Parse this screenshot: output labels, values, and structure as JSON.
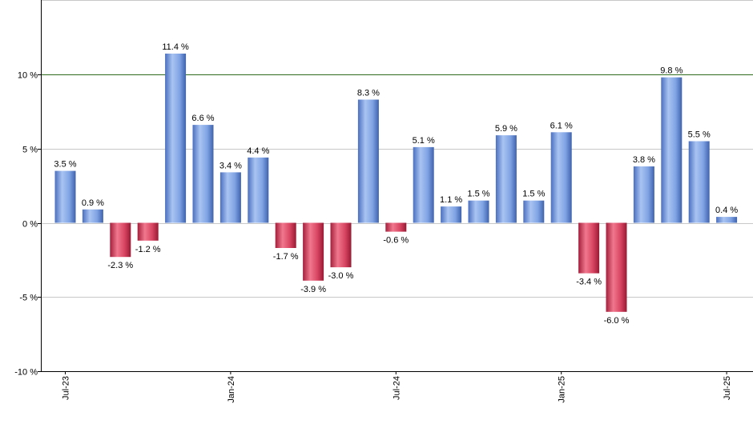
{
  "colors": {
    "positive_bar": "#6f96dc",
    "negative_bar": "#c83a55",
    "reference_line": "#2e6b1f",
    "grid": "#c8c8c8",
    "axis": "#000000"
  },
  "chart_data": {
    "type": "bar",
    "categories": [
      "Jul-23",
      "Aug-23",
      "Sep-23",
      "Oct-23",
      "Nov-23",
      "Dec-23",
      "Jan-24",
      "Feb-24",
      "Mar-24",
      "Apr-24",
      "May-24",
      "Jun-24",
      "Jul-24",
      "Aug-24",
      "Sep-24",
      "Oct-24",
      "Nov-24",
      "Dec-24",
      "Jan-25",
      "Feb-25",
      "Mar-25",
      "Apr-25",
      "May-25",
      "Jun-25",
      "Jul-25"
    ],
    "values": [
      3.5,
      0.9,
      -2.3,
      -1.2,
      11.4,
      6.6,
      3.4,
      4.4,
      -1.7,
      -3.9,
      -3.0,
      8.3,
      -0.6,
      5.1,
      1.1,
      1.5,
      5.9,
      1.5,
      6.1,
      -3.4,
      -6.0,
      3.8,
      9.8,
      5.5,
      0.4
    ],
    "data_labels": [
      "3.5 %",
      "0.9 %",
      "-2.3 %",
      "-1.2 %",
      "11.4 %",
      "6.6 %",
      "3.4 %",
      "4.4 %",
      "-1.7 %",
      "-3.9 %",
      "-3.0 %",
      "8.3 %",
      "-0.6 %",
      "5.1 %",
      "1.1 %",
      "1.5 %",
      "5.9 %",
      "1.5 %",
      "6.1 %",
      "-3.4 %",
      "-6.0 %",
      "3.8 %",
      "9.8 %",
      "5.5 %",
      "0.4 %"
    ],
    "y_ticks": [
      10,
      5,
      0,
      -5,
      -10
    ],
    "y_tick_labels": [
      "10 %",
      "5 %",
      "0 %",
      "-5 %",
      "-10 %"
    ],
    "x_tick_labels": [
      {
        "label": "Jul-23",
        "category": "Jul-23"
      },
      {
        "label": "Jan-24",
        "category": "Jan-24"
      },
      {
        "label": "Jul-24",
        "category": "Jul-24"
      },
      {
        "label": "Jan-25",
        "category": "Jan-25"
      },
      {
        "label": "Jul-25",
        "category": "Jul-25"
      }
    ],
    "ylim": [
      -10,
      15
    ],
    "reference_line": 10,
    "grid": true,
    "legend": "none",
    "title": "",
    "xlabel": "",
    "ylabel": ""
  }
}
